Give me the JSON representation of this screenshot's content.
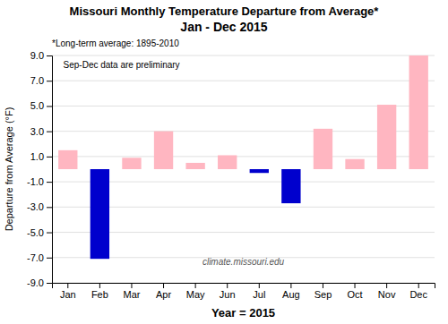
{
  "chart_data": {
    "type": "bar",
    "title": [
      "Missouri Monthly Temperature Departure from Average*",
      "Jan - Dec 2015"
    ],
    "subtitle": "*Long-term average: 1895-2010",
    "x_label": "Year = 2015",
    "y_label": "Departure from Average (°F)",
    "annotations": [
      "Sep-Dec data are preliminary",
      "climate.missouri.edu"
    ],
    "categories": [
      "Jan",
      "Feb",
      "Mar",
      "Apr",
      "May",
      "Jun",
      "Jul",
      "Aug",
      "Sep",
      "Oct",
      "Nov",
      "Dec"
    ],
    "values": [
      1.5,
      -7.1,
      0.9,
      3.0,
      0.5,
      1.1,
      -0.3,
      -2.7,
      3.2,
      0.8,
      5.1,
      9.0
    ],
    "colors": [
      "#FFB6C1",
      "#0000CD",
      "#FFB6C1",
      "#FFB6C1",
      "#FFB6C1",
      "#FFB6C1",
      "#0000CD",
      "#0000CD",
      "#FFB6C1",
      "#FFB6C1",
      "#FFB6C1",
      "#FFB6C1"
    ],
    "ylim": [
      -9.0,
      9.0
    ],
    "yticks": [
      {
        "value": -9.0,
        "label": "-9.0"
      },
      {
        "value": -7.0,
        "label": "-7.0"
      },
      {
        "value": -5.0,
        "label": "-5.0"
      },
      {
        "value": -3.0,
        "label": "-3.0"
      },
      {
        "value": -1.0,
        "label": "-1.0"
      },
      {
        "value": 1.0,
        "label": "1.0"
      },
      {
        "value": 3.0,
        "label": "3.0"
      },
      {
        "value": 5.0,
        "label": "5.0"
      },
      {
        "value": 7.0,
        "label": "7.0"
      },
      {
        "value": 9.0,
        "label": "9.0"
      }
    ],
    "grid": true
  }
}
